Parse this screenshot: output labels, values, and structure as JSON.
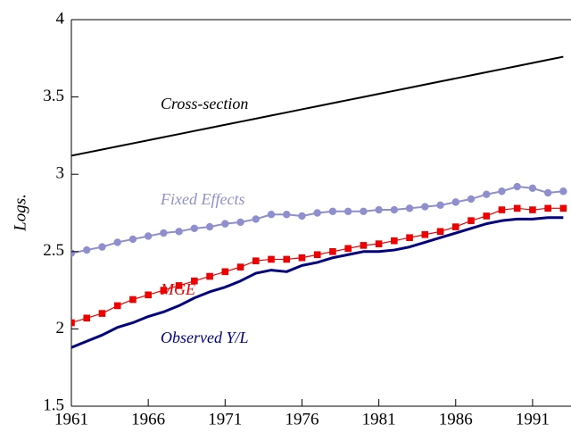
{
  "chart_data": {
    "type": "line",
    "y_label": "Logs.",
    "x": [
      1961,
      1962,
      1963,
      1964,
      1965,
      1966,
      1967,
      1968,
      1969,
      1970,
      1971,
      1972,
      1973,
      1974,
      1975,
      1976,
      1977,
      1978,
      1979,
      1980,
      1981,
      1982,
      1983,
      1984,
      1985,
      1986,
      1987,
      1988,
      1989,
      1990,
      1991,
      1992,
      1993
    ],
    "xlim": [
      1961,
      1993.5
    ],
    "xticks": [
      1961,
      1966,
      1971,
      1976,
      1981,
      1986,
      1991
    ],
    "ylim": [
      1.5,
      4
    ],
    "yticks": [
      1.5,
      2,
      2.5,
      3,
      3.5,
      4
    ],
    "series": [
      {
        "name": "Cross-section",
        "color": "#000000",
        "marker": "none",
        "width": 2,
        "values": [
          3.12,
          3.14,
          3.16,
          3.18,
          3.2,
          3.22,
          3.24,
          3.26,
          3.28,
          3.3,
          3.32,
          3.34,
          3.36,
          3.38,
          3.4,
          3.42,
          3.44,
          3.46,
          3.48,
          3.5,
          3.52,
          3.54,
          3.56,
          3.58,
          3.6,
          3.62,
          3.64,
          3.66,
          3.68,
          3.7,
          3.72,
          3.74,
          3.76
        ]
      },
      {
        "name": "Fixed Effects",
        "color": "#8f8fcf",
        "marker": "circle",
        "width": 2,
        "values": [
          2.49,
          2.51,
          2.53,
          2.56,
          2.58,
          2.6,
          2.62,
          2.63,
          2.65,
          2.66,
          2.68,
          2.69,
          2.71,
          2.74,
          2.74,
          2.73,
          2.75,
          2.76,
          2.76,
          2.76,
          2.77,
          2.77,
          2.78,
          2.79,
          2.8,
          2.82,
          2.84,
          2.87,
          2.89,
          2.92,
          2.91,
          2.88,
          2.89
        ]
      },
      {
        "name": "MGE",
        "color": "#ee0000",
        "marker": "square",
        "width": 1.2,
        "values": [
          2.04,
          2.07,
          2.1,
          2.15,
          2.19,
          2.22,
          2.25,
          2.28,
          2.31,
          2.34,
          2.37,
          2.4,
          2.44,
          2.45,
          2.45,
          2.46,
          2.48,
          2.5,
          2.52,
          2.54,
          2.55,
          2.57,
          2.59,
          2.61,
          2.63,
          2.66,
          2.7,
          2.73,
          2.77,
          2.78,
          2.77,
          2.78,
          2.78
        ]
      },
      {
        "name": "Observed Y/L",
        "color": "#000080",
        "marker": "none",
        "width": 3,
        "values": [
          1.88,
          1.92,
          1.96,
          2.01,
          2.04,
          2.08,
          2.11,
          2.15,
          2.2,
          2.24,
          2.27,
          2.31,
          2.36,
          2.38,
          2.37,
          2.41,
          2.43,
          2.46,
          2.48,
          2.5,
          2.5,
          2.51,
          2.53,
          2.56,
          2.59,
          2.62,
          2.65,
          2.68,
          2.7,
          2.71,
          2.71,
          2.72,
          2.72
        ]
      }
    ]
  }
}
